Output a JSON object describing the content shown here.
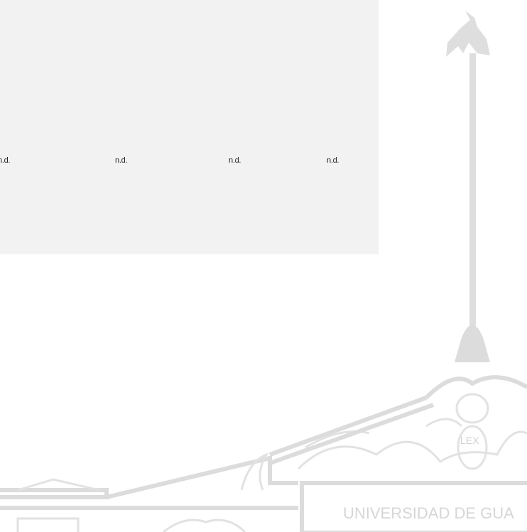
{
  "cells": [
    "n.d.",
    "n.d.",
    "n.d.",
    "n.d."
  ],
  "watermark": {
    "motto": "LEX",
    "name": "UNIVERSIDAD DE GUA"
  }
}
